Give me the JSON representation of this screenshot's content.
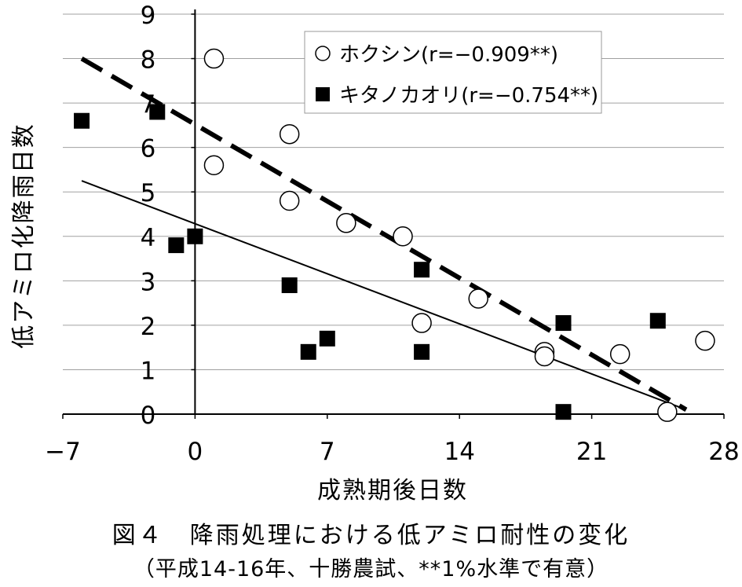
{
  "chart_data": {
    "type": "scatter",
    "xlabel": "成熟期後日数",
    "ylabel": "低アミロ化降雨日数",
    "x_ticks": [
      -7,
      0,
      7,
      14,
      21,
      28
    ],
    "x_tick_labels": [
      "−7",
      "0",
      "7",
      "14",
      "21",
      "28"
    ],
    "y_ticks": [
      0,
      1,
      2,
      3,
      4,
      5,
      6,
      7,
      8,
      9
    ],
    "y_tick_labels": [
      "0",
      "1",
      "2",
      "3",
      "4",
      "5",
      "6",
      "7",
      "8",
      "9"
    ],
    "xlim": [
      -7,
      28
    ],
    "ylim": [
      0,
      9
    ],
    "grid": "horizontal",
    "legend_position": "top-right",
    "series": [
      {
        "name": "ホクシン",
        "legend_label": "ホクシン(r=−0.909**)",
        "marker": "open-circle",
        "points": [
          [
            1,
            8
          ],
          [
            1,
            5.6
          ],
          [
            5,
            6.3
          ],
          [
            5,
            4.8
          ],
          [
            8,
            4.3
          ],
          [
            11,
            4
          ],
          [
            12,
            2.05
          ],
          [
            15,
            2.6
          ],
          [
            18.5,
            1.4
          ],
          [
            18.5,
            1.3
          ],
          [
            22.5,
            1.35
          ],
          [
            25,
            0.05
          ],
          [
            27,
            1.65
          ]
        ],
        "trendline": {
          "style": "dashed",
          "from": [
            -6,
            8
          ],
          "to": [
            26,
            0.1
          ]
        }
      },
      {
        "name": "キタノカオリ",
        "legend_label": "キタノカオリ(r=−0.754**)",
        "marker": "filled-square",
        "points": [
          [
            -6,
            6.6
          ],
          [
            -2,
            6.8
          ],
          [
            -1,
            3.8
          ],
          [
            0,
            4
          ],
          [
            5,
            2.9
          ],
          [
            6,
            1.4
          ],
          [
            7,
            1.7
          ],
          [
            12,
            3.25
          ],
          [
            12,
            1.4
          ],
          [
            19.5,
            2.05
          ],
          [
            19.5,
            0.05
          ],
          [
            24.5,
            2.1
          ]
        ],
        "trendline": {
          "style": "solid",
          "from": [
            -6,
            5.25
          ],
          "to": [
            26,
            0.1
          ]
        }
      }
    ]
  },
  "caption": {
    "title": "図４　降雨処理における低アミロ耐性の変化",
    "subtitle": "（平成14-16年、十勝農試、**1%水準で有意）"
  }
}
